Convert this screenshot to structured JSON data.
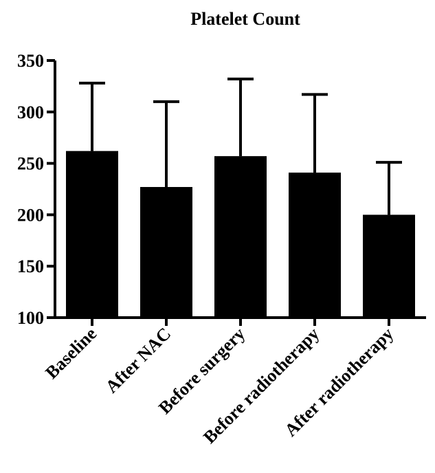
{
  "chart_data": {
    "type": "bar",
    "title": "Platelet Count",
    "xlabel": "",
    "ylabel": "",
    "categories": [
      "Baseline",
      "After NAC",
      "Before surgery",
      "Before radiotherapy",
      "After radiotherapy"
    ],
    "values": [
      262,
      227,
      257,
      241,
      200
    ],
    "error_upper": [
      328,
      310,
      332,
      317,
      251
    ],
    "ylim": [
      100,
      350
    ],
    "yticks": [
      "100",
      "150",
      "200",
      "250",
      "300",
      "350"
    ],
    "grid": false,
    "bar_color": "#000000"
  }
}
